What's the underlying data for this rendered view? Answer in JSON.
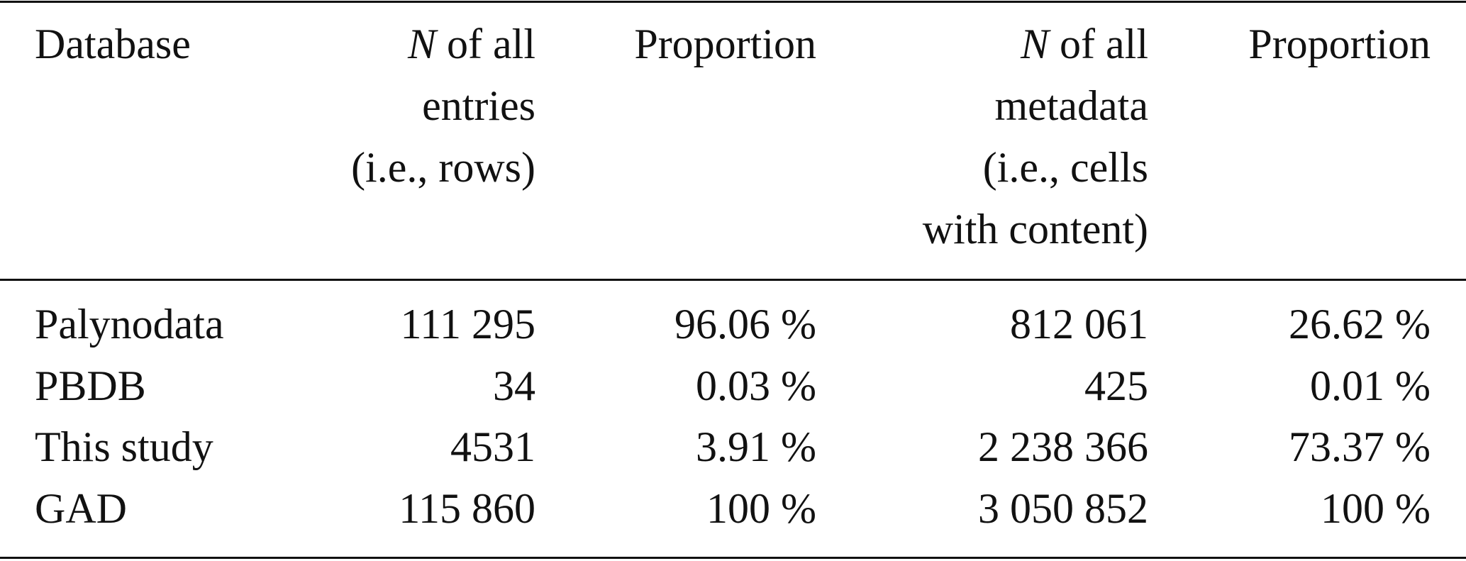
{
  "table": {
    "header": [
      {
        "lines": [
          "Database"
        ]
      },
      {
        "symbol": "N",
        "lines": [
          "of all",
          "entries",
          "(i.e., rows)"
        ]
      },
      {
        "lines": [
          "Proportion"
        ]
      },
      {
        "symbol": "N",
        "lines": [
          "of all",
          "metadata",
          "(i.e., cells",
          "with content)"
        ]
      },
      {
        "lines": [
          "Proportion"
        ]
      }
    ],
    "rows": [
      [
        "Palynodata",
        "111 295",
        "96.06 %",
        "812 061",
        "26.62 %"
      ],
      [
        "PBDB",
        "34",
        "0.03 %",
        "425",
        "0.01 %"
      ],
      [
        "This study",
        "4531",
        "3.91 %",
        "2 238 366",
        "73.37 %"
      ],
      [
        "GAD",
        "115 860",
        "100 %",
        "3 050 852",
        "100 %"
      ]
    ]
  }
}
